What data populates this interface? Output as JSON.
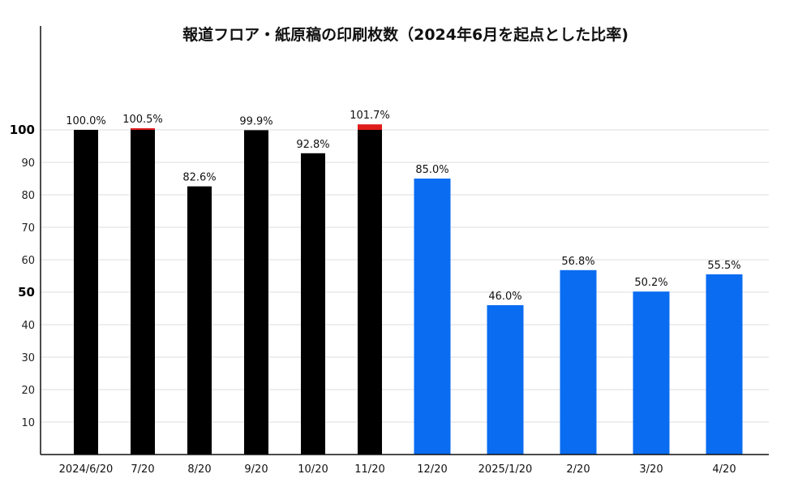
{
  "chart_data": {
    "type": "bar",
    "title": "報道フロア・紙原稿の印刷枚数（2024年6月を起点とした比率)",
    "xlabel": "",
    "ylabel": "",
    "ylim": [
      0,
      100
    ],
    "yticks": [
      10,
      20,
      30,
      40,
      50,
      60,
      70,
      80,
      90,
      100
    ],
    "major_yticks": [
      50,
      100
    ],
    "grid": true,
    "categories": [
      "2024/6/20",
      "7/20",
      "8/20",
      "9/20",
      "10/20",
      "11/20",
      "12/20",
      "2025/1/20",
      "2/20",
      "3/20",
      "4/20"
    ],
    "values": [
      100.0,
      100.5,
      82.6,
      99.9,
      92.8,
      101.7,
      85.0,
      46.0,
      56.8,
      50.2,
      55.5
    ],
    "value_labels": [
      "100.0%",
      "100.5%",
      "82.6%",
      "99.9%",
      "92.8%",
      "101.7%",
      "85.0%",
      "46.0%",
      "56.8%",
      "50.2%",
      "55.5%"
    ],
    "bar_colors": [
      "#000000",
      "#000000",
      "#000000",
      "#000000",
      "#000000",
      "#000000",
      "#0a6cf0",
      "#0a6cf0",
      "#0a6cf0",
      "#0a6cf0",
      "#0a6cf0"
    ],
    "overflow_color": "#e01b1b",
    "grid_color": "#dddddd",
    "axis_color": "#111111"
  }
}
